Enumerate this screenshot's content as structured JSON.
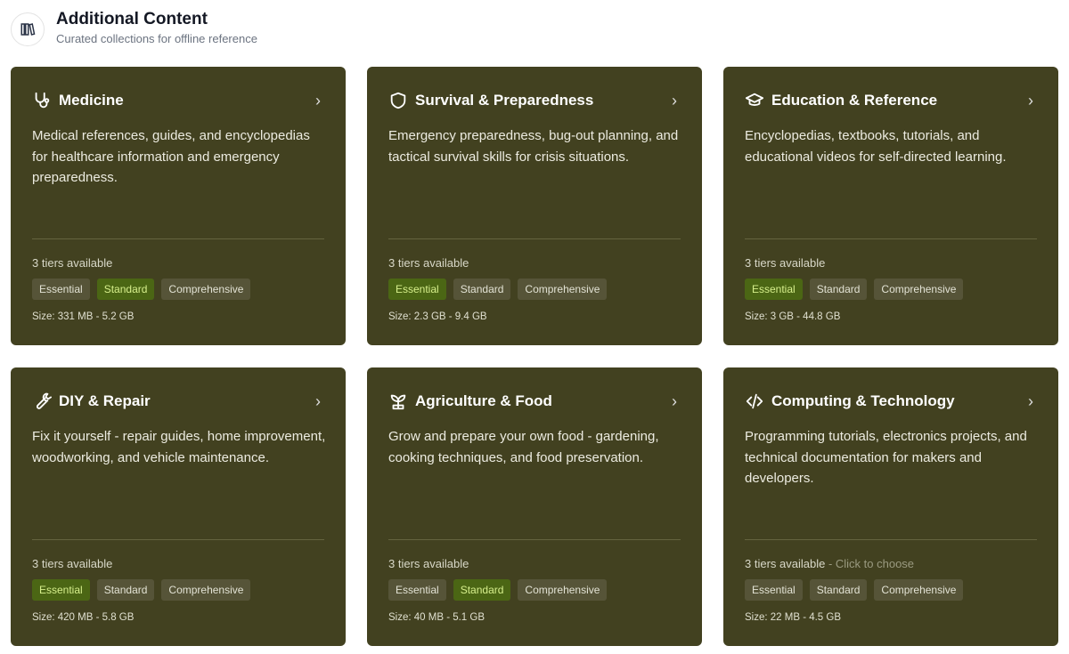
{
  "header": {
    "title": "Additional Content",
    "subtitle": "Curated collections for offline reference",
    "icon": "library-icon"
  },
  "colors": {
    "card": "#424120",
    "badge": "#565438",
    "badge_active": "#4b6614",
    "badge_active_text": "#d6ef8c"
  },
  "cards": [
    {
      "title": "Medicine",
      "icon": "stethoscope-icon",
      "description": "Medical references, guides, and encyclopedias for healthcare information and emergency preparedness.",
      "tiers": "3 tiers available",
      "hint": "",
      "badges": [
        "Essential",
        "Standard",
        "Comprehensive"
      ],
      "selected": 1,
      "size": "Size: 331 MB - 5.2 GB"
    },
    {
      "title": "Survival & Preparedness",
      "icon": "shield-icon",
      "description": "Emergency preparedness, bug-out planning, and tactical survival skills for crisis situations.",
      "tiers": "3 tiers available",
      "hint": "",
      "badges": [
        "Essential",
        "Standard",
        "Comprehensive"
      ],
      "selected": 0,
      "size": "Size: 2.3 GB - 9.4 GB"
    },
    {
      "title": "Education & Reference",
      "icon": "graduation-cap-icon",
      "description": "Encyclopedias, textbooks, tutorials, and educational videos for self-directed learning.",
      "tiers": "3 tiers available",
      "hint": "",
      "badges": [
        "Essential",
        "Standard",
        "Comprehensive"
      ],
      "selected": 0,
      "size": "Size: 3 GB - 44.8 GB"
    },
    {
      "title": "DIY & Repair",
      "icon": "wrench-icon",
      "description": "Fix it yourself - repair guides, home improvement, woodworking, and vehicle maintenance.",
      "tiers": "3 tiers available",
      "hint": "",
      "badges": [
        "Essential",
        "Standard",
        "Comprehensive"
      ],
      "selected": 0,
      "size": "Size: 420 MB - 5.8 GB"
    },
    {
      "title": "Agriculture & Food",
      "icon": "sprout-icon",
      "description": "Grow and prepare your own food - gardening, cooking techniques, and food preservation.",
      "tiers": "3 tiers available",
      "hint": "",
      "badges": [
        "Essential",
        "Standard",
        "Comprehensive"
      ],
      "selected": 1,
      "size": "Size: 40 MB - 5.1 GB"
    },
    {
      "title": "Computing & Technology",
      "icon": "code-icon",
      "description": "Programming tutorials, electronics projects, and technical documentation for makers and developers.",
      "tiers": "3 tiers available",
      "hint": " - Click to choose",
      "badges": [
        "Essential",
        "Standard",
        "Comprehensive"
      ],
      "selected": -1,
      "size": "Size: 22 MB - 4.5 GB"
    }
  ]
}
